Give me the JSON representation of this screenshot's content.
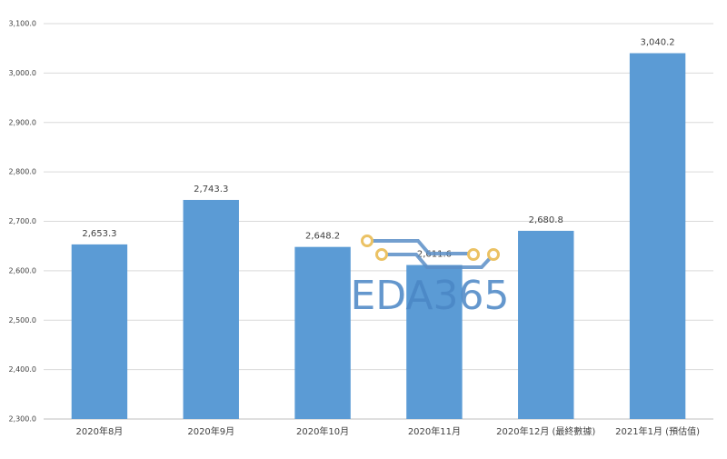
{
  "chart_data": {
    "type": "bar",
    "categories": [
      "2020年8月",
      "2020年9月",
      "2020年10月",
      "2020年11月",
      "2020年12月 (最終數據)",
      "2021年1月 (預估值)"
    ],
    "values": [
      2653.3,
      2743.3,
      2648.2,
      2611.6,
      2680.8,
      3040.2
    ],
    "value_labels": [
      "2,653.3",
      "2,743.3",
      "2,648.2",
      "2,611.6",
      "2,680.8",
      "3,040.2"
    ],
    "color": "#5b9bd5",
    "ylim": [
      2300,
      3100
    ],
    "yticks": [
      {
        "value": 2300,
        "label": "2,300.0"
      },
      {
        "value": 2400,
        "label": "2,400.0"
      },
      {
        "value": 2500,
        "label": "2,500.0"
      },
      {
        "value": 2600,
        "label": "2,600.0"
      },
      {
        "value": 2700,
        "label": "2,700.0"
      },
      {
        "value": 2800,
        "label": "2,800.0"
      },
      {
        "value": 2900,
        "label": "2,900.0"
      },
      {
        "value": 3000,
        "label": "3,000.0"
      },
      {
        "value": 3100,
        "label": "3,100.0"
      }
    ],
    "grid": true
  },
  "watermark": "EDA365"
}
